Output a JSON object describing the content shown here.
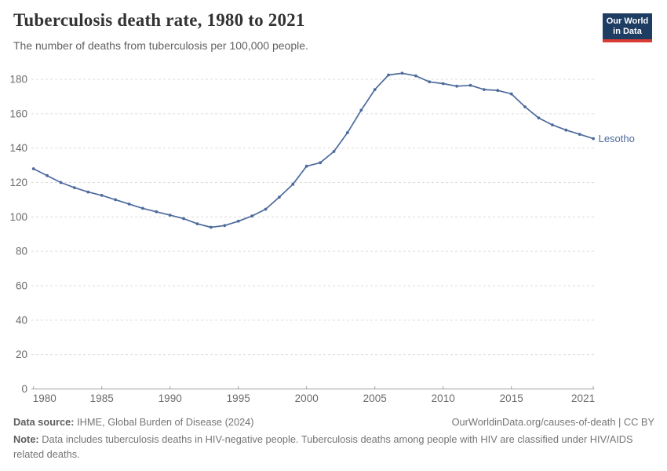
{
  "header": {
    "logo": {
      "line1": "Our World",
      "line2": "in Data",
      "bg_color": "#1d3d63",
      "bar_color": "#d93a34"
    }
  },
  "chart_data": {
    "type": "line",
    "title": "Tuberculosis death rate, 1980 to 2021",
    "subtitle": "The number of deaths from tuberculosis per 100,000 people.",
    "xlabel": "",
    "ylabel": "",
    "ylim": [
      0,
      190
    ],
    "grid": "horizontal-dashed",
    "legend_position": "end-of-line-label",
    "x": [
      1980,
      1981,
      1982,
      1983,
      1984,
      1985,
      1986,
      1987,
      1988,
      1989,
      1990,
      1991,
      1992,
      1993,
      1994,
      1995,
      1996,
      1997,
      1998,
      1999,
      2000,
      2001,
      2002,
      2003,
      2004,
      2005,
      2006,
      2007,
      2008,
      2009,
      2010,
      2011,
      2012,
      2013,
      2014,
      2015,
      2016,
      2017,
      2018,
      2019,
      2020,
      2021
    ],
    "series": [
      {
        "name": "Lesotho",
        "color": "#4c6a9c",
        "values": [
          128,
          124,
          120,
          117,
          114.5,
          112.5,
          110,
          107.5,
          105,
          103,
          101,
          99,
          96,
          94,
          95,
          97.5,
          100.5,
          104.5,
          111.5,
          119,
          129.5,
          131.5,
          138,
          149,
          162,
          174,
          182.5,
          183.5,
          182,
          178.5,
          177.5,
          176,
          176.5,
          174,
          173.5,
          171.5,
          164,
          157.5,
          153.5,
          150.5,
          148,
          145.5
        ]
      }
    ],
    "yticks": [
      0,
      20,
      40,
      60,
      80,
      100,
      120,
      140,
      160,
      180
    ],
    "xticks": [
      1980,
      1985,
      1990,
      1995,
      2000,
      2005,
      2010,
      2015,
      2021
    ]
  },
  "footer": {
    "datasource_label": "Data source:",
    "datasource_value": " IHME, Global Burden of Disease (2024)",
    "attribution": "OurWorldinData.org/causes-of-death | CC BY",
    "note_label": "Note:",
    "note_text": " Data includes tuberculosis deaths in HIV-negative people. Tuberculosis deaths among people with HIV are classified under HIV/AIDS related deaths."
  }
}
